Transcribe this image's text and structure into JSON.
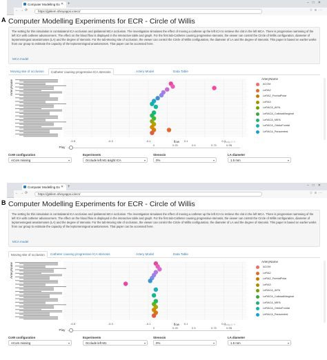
{
  "panels": [
    {
      "panel_label": "A",
      "browser": {
        "tab_title": "Computer Modelling Ex",
        "url": "https://jpklem.shinyapps.io/ecr/"
      },
      "page_title": "Computer Modelling Experiments for ECR - Circle of Willis",
      "description": "The setting for this simulation is contralateral ICA occlusion and ipsilateral MCA occlusion. The investigation simulates the effect of moving a catheter up the left ICA to retrieve the clot in the left MCA. There is progressive narrowing of the left ICA with catheter advancement. The effect on the blood flow is displayed in the interactive table and graph. For the first tab-Catheter causing progressive stenosis, the viewer can control the Circle of Willis configuration, diameter of leptomeningeal anastomoses (LA) and the degree of stenosis. For the tab-Moving site of occlusion, the viewer can control the Circle of Willis configuration, the diameter of LA and the degree of stenosis. This paper is based on earlier works from our group to estimate the capacity of the leptomeningeal anastomoses. That paper can be accessed here.",
      "mca_link": "MCA model",
      "tabs": [
        "Moving site of occlusion",
        "Catheter causing progressive ICA stenosis",
        "Artery Model",
        "Data Table"
      ],
      "active_tab": 1,
      "y_axis_label": "ArteryName",
      "x_axis_label": "flow",
      "legend_title": "ArteryName",
      "legend_items": [
        "ACOM",
        "LeRA2",
        "LeRA2_FrontalPolar",
        "LeRA3",
        "LeRACA_AIFA",
        "LeRACA_CallosalMarginal",
        "LeRACA_MIFA",
        "LeRACA_OrbitoFrontal",
        "LeRACA_Paracentral"
      ],
      "modebar_text": "+ plotly  ⊡ ✎",
      "play_label": "Play",
      "controls": [
        {
          "label": "CoW configuration",
          "value": "ACom missing"
        },
        {
          "label": "Experiments",
          "value": "Occlude left M1 &right ICA"
        },
        {
          "label": "Stenosis",
          "value": "0%"
        },
        {
          "label": "LA diameter",
          "value": "1.5 mm"
        }
      ],
      "slider_ticks": [
        "0",
        "0.25",
        "0.5",
        "0.75",
        "0.99",
        "1"
      ]
    },
    {
      "panel_label": "B",
      "browser": {
        "tab_title": "Computer Modelling Ex",
        "url": "https://jpklem.shinyapps.io/ecr/"
      },
      "page_title": "Computer Modelling Experiments for ECR - Circle of Willis",
      "description": "The setting for this simulation is contralateral ICA occlusion and ipsilateral MCA occlusion. The investigation simulates the effect of moving a catheter up the left ICA to retrieve the clot in the left MCA. There is progressive narrowing of the left ICA with catheter advancement. The effect on the blood flow is displayed in the interactive table and graph. For the first tab-Catheter causing progressive stenosis, the viewer can control the Circle of Willis configuration, diameter of leptomeningeal anastomoses (LA) and the degree of stenosis. For the tab-Moving site of occlusion, the viewer can control the Circle of Willis configuration, the diameter of LA and the degree of stenosis. This paper is based on earlier works from our group to estimate the capacity of the leptomeningeal anastomoses. That paper can be accessed here.",
      "mca_link": "MCA model",
      "tabs": [
        "Moving site of occlusion",
        "Catheter causing progressive ICA stenosis",
        "Artery Model",
        "Data Table"
      ],
      "active_tab": 0,
      "y_axis_label": "ArteryName",
      "x_axis_label": "flow",
      "legend_title": "ArteryName",
      "legend_items": [
        "ACOM",
        "LeRA2",
        "LeRA2_FrontalPolar",
        "LeRA3",
        "LeRACA_AIFA",
        "LeRACA_CallosalMarginal",
        "LeRACA_MIFA",
        "LeRACA_OrbitoFrontal",
        "LeRACA_Paracentral"
      ],
      "modebar_text": "+ plotly  ⊡ ✎",
      "play_label": "Play",
      "controls": [
        {
          "label": "CoW configuration",
          "value": "ACom missing"
        },
        {
          "label": "Experiments",
          "value": "Occlude left M1"
        },
        {
          "label": "Stenosis",
          "value": "0%"
        },
        {
          "label": "LA diameter",
          "value": "1.5 mm"
        }
      ],
      "slider_ticks": [
        "0",
        "0.25",
        "0.5",
        "0.75",
        "0.99",
        "1"
      ]
    }
  ],
  "chart_data": [
    {
      "type": "scatter",
      "xlabel": "flow",
      "ylabel": "ArteryName",
      "x_ticks": [
        -0.5,
        -0.4,
        -0.3,
        -0.2,
        -0.1,
        0,
        0.1,
        0.2,
        0.3,
        0.4
      ],
      "x_tick_labels": [
        "-0.5",
        "",
        "-0.3",
        "",
        "-0.1",
        "",
        "0.1",
        "",
        "0.3",
        ""
      ],
      "xlim": [
        -0.55,
        0.42
      ],
      "points": [
        {
          "x": 0.02,
          "yi": 1,
          "color": "#e84a9a"
        },
        {
          "x": 0.03,
          "yi": 2,
          "color": "#e55fb8"
        },
        {
          "x": 0.25,
          "yi": 2.5,
          "color": "#f04aa0"
        },
        {
          "x": 0.0,
          "yi": 3,
          "color": "#c86ad8"
        },
        {
          "x": -0.02,
          "yi": 4,
          "color": "#a77de0"
        },
        {
          "x": -0.03,
          "yi": 5,
          "color": "#8c86e8"
        },
        {
          "x": -0.05,
          "yi": 6,
          "color": "#3f8fd0"
        },
        {
          "x": -0.07,
          "yi": 7,
          "color": "#20a4c8"
        },
        {
          "x": -0.08,
          "yi": 8,
          "color": "#10b0b0"
        },
        {
          "x": -0.06,
          "yi": 9,
          "color": "#14b79a"
        },
        {
          "x": -0.07,
          "yi": 11,
          "color": "#17b77a"
        },
        {
          "x": -0.08,
          "yi": 12,
          "color": "#23b860"
        },
        {
          "x": -0.07,
          "yi": 13,
          "color": "#42b838"
        },
        {
          "x": -0.08,
          "yi": 14,
          "color": "#8aa917"
        },
        {
          "x": -0.07,
          "yi": 15,
          "color": "#b3a300"
        },
        {
          "x": -0.08,
          "yi": 16,
          "color": "#d08b00"
        },
        {
          "x": -0.07,
          "yi": 17,
          "color": "#d97817"
        },
        {
          "x": 0.01,
          "yi": 17,
          "color": "#e06a30"
        },
        {
          "x": -0.08,
          "yi": 18,
          "color": "#e05d3d"
        }
      ]
    },
    {
      "type": "scatter",
      "xlabel": "flow",
      "ylabel": "ArteryName",
      "x_ticks": [
        -0.5,
        -0.4,
        -0.3,
        -0.2,
        -0.1,
        0,
        0.1,
        0.2,
        0.3,
        0.4
      ],
      "x_tick_labels": [
        "-0.5",
        "",
        "-0.3",
        "",
        "-0.1",
        "",
        "0.1",
        "",
        "0.3",
        ""
      ],
      "xlim": [
        -0.55,
        0.42
      ],
      "points": [
        {
          "x": -0.06,
          "yi": 0,
          "color": "#e84a9a"
        },
        {
          "x": -0.05,
          "yi": 1,
          "color": "#e55fb8"
        },
        {
          "x": -0.04,
          "yi": 2,
          "color": "#d56ad0"
        },
        {
          "x": -0.06,
          "yi": 3,
          "color": "#b978e0"
        },
        {
          "x": -0.07,
          "yi": 4,
          "color": "#9a82e6"
        },
        {
          "x": -0.08,
          "yi": 5,
          "color": "#7b8cea"
        },
        {
          "x": -0.09,
          "yi": 6,
          "color": "#3f95d2"
        },
        {
          "x": -0.22,
          "yi": 7,
          "color": "#e04aa6"
        },
        {
          "x": -0.06,
          "yi": 9,
          "color": "#15b0b8"
        },
        {
          "x": -0.07,
          "yi": 11,
          "color": "#17b58a"
        },
        {
          "x": -0.06,
          "yi": 13,
          "color": "#1fb860"
        },
        {
          "x": -0.07,
          "yi": 14,
          "color": "#5bb52a"
        },
        {
          "x": -0.06,
          "yi": 15,
          "color": "#a9a600"
        },
        {
          "x": -0.07,
          "yi": 16,
          "color": "#cf8c00"
        },
        {
          "x": -0.06,
          "yi": 17,
          "color": "#d97817"
        },
        {
          "x": -0.07,
          "yi": 18,
          "color": "#e05d3d"
        }
      ]
    }
  ],
  "legend_colors": [
    "#f26a6a",
    "#e06a2a",
    "#c47d00",
    "#a89000",
    "#74a000",
    "#3aa83a",
    "#1fb07a",
    "#18b0ad",
    "#1aa0d0"
  ]
}
